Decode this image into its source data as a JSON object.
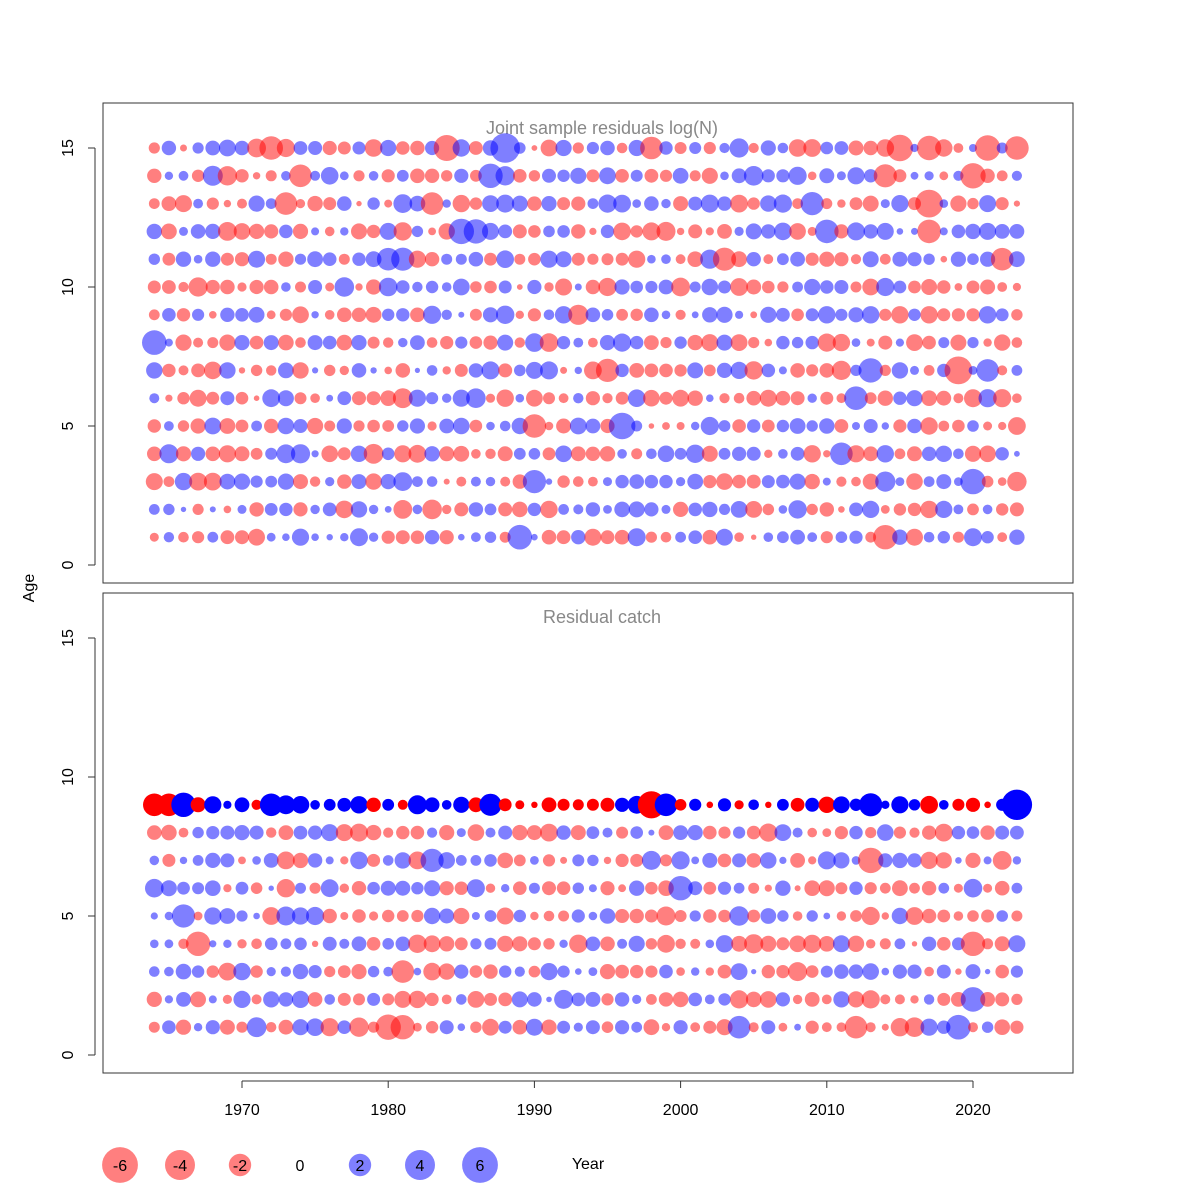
{
  "chart_data": {
    "type": "scatter",
    "subtype": "bubble-residuals",
    "x_label": "Year",
    "y_label": "Age",
    "x_ticks": [
      1970,
      1980,
      1990,
      2000,
      2010,
      2020
    ],
    "y_ticks": [
      0,
      5,
      10,
      15
    ],
    "x_range": [
      1964,
      2023
    ],
    "y_range": [
      0,
      16
    ],
    "legend": {
      "position": "bottom-left",
      "values": [
        -6,
        -4,
        -2,
        0,
        2,
        4,
        6
      ],
      "labels": [
        "-6",
        "-4",
        "-2",
        "0",
        "2",
        "4",
        "6"
      ]
    },
    "colors": {
      "negative": "#ff0000",
      "positive": "#0000ff",
      "negative_alpha": 0.5,
      "positive_alpha": 0.5,
      "panel_title": "#888888"
    },
    "panels": [
      {
        "title": "Joint sample residuals log(N)",
        "ages": [
          1,
          15
        ],
        "years": [
          1964,
          2023
        ],
        "opaque_ages": [],
        "seed": 11,
        "highlights": [
          {
            "year": 1964,
            "age": 8,
            "value": 3.6
          },
          {
            "year": 1984,
            "age": 15,
            "value": -4.0
          },
          {
            "year": 1988,
            "age": 15,
            "value": 5.2
          },
          {
            "year": 1986,
            "age": 12,
            "value": 3.5
          },
          {
            "year": 1985,
            "age": 12,
            "value": 3.8
          },
          {
            "year": 1987,
            "age": 14,
            "value": 3.5
          },
          {
            "year": 1972,
            "age": 15,
            "value": -3.3
          },
          {
            "year": 1974,
            "age": 14,
            "value": -3.0
          },
          {
            "year": 1973,
            "age": 13,
            "value": -3.0
          },
          {
            "year": 1981,
            "age": 11,
            "value": 3.2
          },
          {
            "year": 1980,
            "age": 11,
            "value": 3.0
          },
          {
            "year": 1983,
            "age": 13,
            "value": -3.0
          },
          {
            "year": 1989,
            "age": 1,
            "value": 3.6
          },
          {
            "year": 1990,
            "age": 5,
            "value": -3.3
          },
          {
            "year": 1990,
            "age": 3,
            "value": 3.2
          },
          {
            "year": 1996,
            "age": 5,
            "value": 4.2
          },
          {
            "year": 1995,
            "age": 7,
            "value": -3.2
          },
          {
            "year": 1998,
            "age": 15,
            "value": -3.0
          },
          {
            "year": 2003,
            "age": 11,
            "value": -3.2
          },
          {
            "year": 2010,
            "age": 12,
            "value": 3.3
          },
          {
            "year": 2009,
            "age": 13,
            "value": 3.2
          },
          {
            "year": 2012,
            "age": 6,
            "value": 3.3
          },
          {
            "year": 2013,
            "age": 7,
            "value": 3.5
          },
          {
            "year": 2011,
            "age": 4,
            "value": 3.0
          },
          {
            "year": 2014,
            "age": 1,
            "value": -3.5
          },
          {
            "year": 2014,
            "age": 14,
            "value": -3.2
          },
          {
            "year": 2015,
            "age": 15,
            "value": -4.1
          },
          {
            "year": 2017,
            "age": 13,
            "value": -4.6
          },
          {
            "year": 2017,
            "age": 15,
            "value": -3.5
          },
          {
            "year": 2017,
            "age": 12,
            "value": -3.3
          },
          {
            "year": 2019,
            "age": 7,
            "value": -4.6
          },
          {
            "year": 2020,
            "age": 3,
            "value": 3.8
          },
          {
            "year": 2020,
            "age": 14,
            "value": -3.8
          },
          {
            "year": 2021,
            "age": 15,
            "value": -3.8
          },
          {
            "year": 2023,
            "age": 15,
            "value": -3.3
          },
          {
            "year": 2022,
            "age": 11,
            "value": -3.0
          },
          {
            "year": 2021,
            "age": 7,
            "value": 3.0
          }
        ]
      },
      {
        "title": "Residual catch",
        "ages": [
          1,
          9
        ],
        "years": [
          1964,
          2023
        ],
        "opaque_ages": [
          9
        ],
        "seed": 47,
        "highlights": [
          {
            "year": 2023,
            "age": 9,
            "value": 5.5
          },
          {
            "year": 1998,
            "age": 9,
            "value": -4.4
          },
          {
            "year": 1966,
            "age": 9,
            "value": 3.5
          },
          {
            "year": 1964,
            "age": 9,
            "value": -3.0
          },
          {
            "year": 1965,
            "age": 9,
            "value": -3.0
          },
          {
            "year": 1972,
            "age": 9,
            "value": 3.0
          },
          {
            "year": 1987,
            "age": 9,
            "value": 2.9
          },
          {
            "year": 1999,
            "age": 9,
            "value": 3.0
          },
          {
            "year": 2013,
            "age": 9,
            "value": 3.2
          },
          {
            "year": 2000,
            "age": 6,
            "value": 3.5
          },
          {
            "year": 2013,
            "age": 7,
            "value": -3.8
          },
          {
            "year": 1980,
            "age": 1,
            "value": -3.8
          },
          {
            "year": 1981,
            "age": 1,
            "value": -3.5
          },
          {
            "year": 2019,
            "age": 1,
            "value": 3.6
          },
          {
            "year": 2020,
            "age": 2,
            "value": 3.6
          },
          {
            "year": 2020,
            "age": 4,
            "value": -3.5
          },
          {
            "year": 1967,
            "age": 4,
            "value": -3.5
          },
          {
            "year": 1966,
            "age": 5,
            "value": 3.2
          },
          {
            "year": 1983,
            "age": 7,
            "value": 3.2
          },
          {
            "year": 1981,
            "age": 3,
            "value": -3.0
          },
          {
            "year": 2012,
            "age": 1,
            "value": -3.0
          },
          {
            "year": 2004,
            "age": 1,
            "value": 3.0
          }
        ]
      }
    ]
  }
}
